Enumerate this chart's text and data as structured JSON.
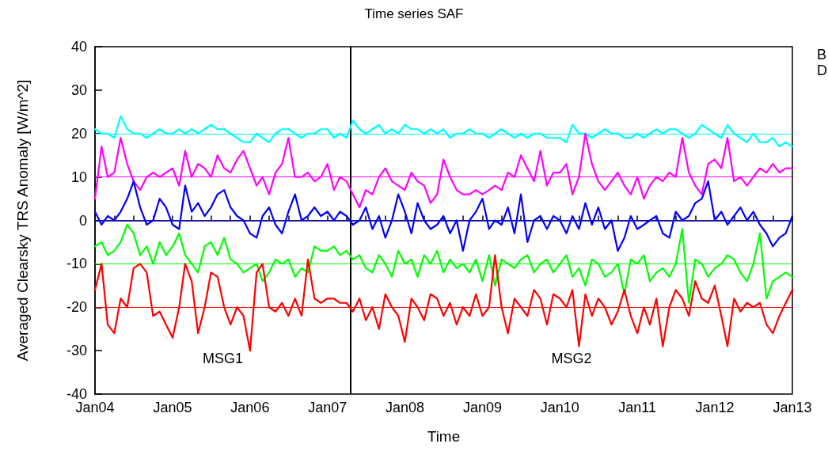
{
  "chart_data": {
    "type": "line",
    "title": "Time series SAF",
    "xlabel": "Time",
    "ylabel": "Averaged Clearsky TRS Anomaly [W/m^2]",
    "x": [
      "2004-01",
      "2004-02",
      "2004-03",
      "2004-04",
      "2004-05",
      "2004-06",
      "2004-07",
      "2004-08",
      "2004-09",
      "2004-10",
      "2004-11",
      "2004-12",
      "2005-01",
      "2005-02",
      "2005-03",
      "2005-04",
      "2005-05",
      "2005-06",
      "2005-07",
      "2005-08",
      "2005-09",
      "2005-10",
      "2005-11",
      "2005-12",
      "2006-01",
      "2006-02",
      "2006-03",
      "2006-04",
      "2006-05",
      "2006-06",
      "2006-07",
      "2006-08",
      "2006-09",
      "2006-10",
      "2006-11",
      "2006-12",
      "2007-01",
      "2007-02",
      "2007-03",
      "2007-04",
      "2007-05",
      "2007-06",
      "2007-07",
      "2007-08",
      "2007-09",
      "2007-10",
      "2007-11",
      "2007-12",
      "2008-01",
      "2008-02",
      "2008-03",
      "2008-04",
      "2008-05",
      "2008-06",
      "2008-07",
      "2008-08",
      "2008-09",
      "2008-10",
      "2008-11",
      "2008-12",
      "2009-01",
      "2009-02",
      "2009-03",
      "2009-04",
      "2009-05",
      "2009-06",
      "2009-07",
      "2009-08",
      "2009-09",
      "2009-10",
      "2009-11",
      "2009-12",
      "2010-01",
      "2010-02",
      "2010-03",
      "2010-04",
      "2010-05",
      "2010-06",
      "2010-07",
      "2010-08",
      "2010-09",
      "2010-10",
      "2010-11",
      "2010-12",
      "2011-01",
      "2011-02",
      "2011-03",
      "2011-04",
      "2011-05",
      "2011-06",
      "2011-07",
      "2011-08",
      "2011-09",
      "2011-10",
      "2011-11",
      "2011-12",
      "2012-01",
      "2012-02",
      "2012-03",
      "2012-04",
      "2012-05",
      "2012-06",
      "2012-07",
      "2012-08",
      "2012-09",
      "2012-10",
      "2012-11",
      "2012-12",
      "2013-01"
    ],
    "series": [
      {
        "color": "#00ffff",
        "values": [
          21,
          20,
          20,
          19,
          24,
          21,
          20,
          20,
          19,
          20,
          21,
          20,
          20,
          21,
          20,
          21,
          20,
          21,
          22,
          21,
          21,
          20,
          19,
          18,
          18,
          20,
          19,
          18,
          20,
          21,
          21,
          20,
          19,
          20,
          20,
          21,
          21,
          19,
          20,
          19,
          23,
          21,
          20,
          21,
          22,
          20,
          21,
          20,
          22,
          21,
          21,
          20,
          21,
          20,
          21,
          19,
          20,
          20,
          21,
          20,
          20,
          19,
          20,
          21,
          20,
          19,
          20,
          19,
          20,
          20,
          19,
          19,
          19,
          18,
          22,
          20,
          20,
          19,
          20,
          21,
          20,
          20,
          19,
          19,
          20,
          19,
          20,
          21,
          20,
          21,
          21,
          20,
          19,
          20,
          22,
          21,
          20,
          19,
          22,
          20,
          19,
          18,
          20,
          18,
          18,
          19,
          17,
          18,
          17
        ]
      },
      {
        "color": "#ff00ff",
        "values": [
          5,
          17,
          10,
          11,
          19,
          13,
          9,
          7,
          10,
          11,
          10,
          11,
          12,
          8,
          16,
          10,
          13,
          12,
          10,
          15,
          12,
          11,
          14,
          16,
          12,
          8,
          10,
          6,
          11,
          13,
          19,
          10,
          10,
          11,
          9,
          10,
          13,
          7,
          10,
          9,
          6,
          3,
          7,
          6,
          10,
          12,
          9,
          8,
          7,
          11,
          9,
          8,
          4,
          6,
          14,
          10,
          7,
          6,
          6,
          7,
          6,
          7,
          8,
          7,
          11,
          10,
          15,
          12,
          9,
          16,
          8,
          11,
          11,
          13,
          6,
          10,
          20,
          13,
          9,
          7,
          9,
          11,
          8,
          6,
          10,
          5,
          8,
          10,
          9,
          11,
          10,
          19,
          11,
          8,
          6,
          13,
          14,
          12,
          19,
          9,
          10,
          8,
          10,
          12,
          11,
          13,
          11,
          12,
          12
        ]
      },
      {
        "color": "#0000ff",
        "values": [
          2,
          -1,
          1,
          0,
          2,
          5,
          9,
          3,
          -1,
          0,
          5,
          3,
          -1,
          -2,
          8,
          2,
          4,
          1,
          3,
          6,
          7,
          3,
          1,
          0,
          -3,
          -4,
          1,
          3,
          -1,
          -3,
          2,
          6,
          0,
          1,
          3,
          1,
          2,
          0,
          2,
          1,
          -1,
          0,
          3,
          -2,
          1,
          -4,
          0,
          6,
          2,
          -3,
          4,
          0,
          -2,
          -1,
          1,
          -3,
          0,
          -7,
          0,
          2,
          5,
          -2,
          0,
          -1,
          3,
          -3,
          6,
          -5,
          0,
          1,
          -2,
          1,
          0,
          -3,
          1,
          -2,
          4,
          -1,
          3,
          -2,
          0,
          -7,
          -4,
          1,
          -2,
          -1,
          0,
          1,
          -3,
          -4,
          2,
          0,
          1,
          4,
          5,
          9,
          0,
          2,
          -1,
          1,
          3,
          0,
          2,
          -1,
          -3,
          -6,
          -4,
          -3,
          1
        ]
      },
      {
        "color": "#00ff00",
        "values": [
          -6,
          -5,
          -8,
          -7,
          -5,
          -1,
          -3,
          -8,
          -6,
          -10,
          -5,
          -8,
          -6,
          -3,
          -8,
          -10,
          -12,
          -6,
          -5,
          -8,
          -4,
          -9,
          -10,
          -12,
          -11,
          -10,
          -14,
          -12,
          -9,
          -10,
          -9,
          -13,
          -11,
          -12,
          -6,
          -7,
          -7,
          -6,
          -8,
          -7,
          -9,
          -8,
          -11,
          -12,
          -8,
          -10,
          -13,
          -7,
          -10,
          -9,
          -13,
          -8,
          -10,
          -7,
          -12,
          -9,
          -11,
          -10,
          -12,
          -9,
          -14,
          -8,
          -15,
          -9,
          -10,
          -11,
          -9,
          -8,
          -12,
          -10,
          -9,
          -12,
          -10,
          -8,
          -13,
          -11,
          -15,
          -9,
          -10,
          -13,
          -12,
          -10,
          -17,
          -9,
          -10,
          -8,
          -14,
          -12,
          -11,
          -13,
          -10,
          -2,
          -19,
          -9,
          -10,
          -13,
          -11,
          -10,
          -8,
          -9,
          -12,
          -14,
          -10,
          -3,
          -18,
          -14,
          -13,
          -12,
          -13
        ]
      },
      {
        "color": "#ff0000",
        "values": [
          -16,
          -10,
          -24,
          -26,
          -18,
          -20,
          -11,
          -10,
          -12,
          -22,
          -21,
          -24,
          -27,
          -20,
          -10,
          -14,
          -26,
          -20,
          -12,
          -13,
          -20,
          -24,
          -20,
          -22,
          -30,
          -12,
          -10,
          -20,
          -21,
          -19,
          -22,
          -18,
          -22,
          -9,
          -18,
          -19,
          -18,
          -18,
          -19,
          -19,
          -21,
          -18,
          -23,
          -20,
          -25,
          -17,
          -20,
          -22,
          -28,
          -18,
          -20,
          -23,
          -17,
          -18,
          -22,
          -19,
          -24,
          -20,
          -22,
          -17,
          -22,
          -20,
          -8,
          -20,
          -26,
          -18,
          -20,
          -22,
          -16,
          -18,
          -24,
          -17,
          -18,
          -20,
          -16,
          -29,
          -17,
          -22,
          -18,
          -20,
          -24,
          -21,
          -16,
          -22,
          -26,
          -20,
          -24,
          -18,
          -29,
          -20,
          -16,
          -18,
          -22,
          -14,
          -18,
          -19,
          -15,
          -22,
          -29,
          -18,
          -21,
          -19,
          -20,
          -19,
          -24,
          -26,
          -22,
          -19,
          -16
        ]
      }
    ],
    "xlim": [
      "2004-01",
      "2013-01"
    ],
    "xticks": [
      {
        "value": "2004-01",
        "label": "Jan04"
      },
      {
        "value": "2004-04",
        "label": null
      },
      {
        "value": "2004-07",
        "label": null
      },
      {
        "value": "2004-10",
        "label": null
      },
      {
        "value": "2005-01",
        "label": "Jan05"
      },
      {
        "value": "2005-04",
        "label": null
      },
      {
        "value": "2005-07",
        "label": null
      },
      {
        "value": "2005-10",
        "label": null
      },
      {
        "value": "2006-01",
        "label": "Jan06"
      },
      {
        "value": "2006-04",
        "label": null
      },
      {
        "value": "2006-07",
        "label": null
      },
      {
        "value": "2006-10",
        "label": null
      },
      {
        "value": "2007-01",
        "label": "Jan07"
      },
      {
        "value": "2007-04",
        "label": null
      },
      {
        "value": "2007-07",
        "label": null
      },
      {
        "value": "2007-10",
        "label": null
      },
      {
        "value": "2008-01",
        "label": "Jan08"
      },
      {
        "value": "2008-04",
        "label": null
      },
      {
        "value": "2008-07",
        "label": null
      },
      {
        "value": "2008-10",
        "label": null
      },
      {
        "value": "2009-01",
        "label": "Jan09"
      },
      {
        "value": "2009-04",
        "label": null
      },
      {
        "value": "2009-07",
        "label": null
      },
      {
        "value": "2009-10",
        "label": null
      },
      {
        "value": "2010-01",
        "label": "Jan10"
      },
      {
        "value": "2010-04",
        "label": null
      },
      {
        "value": "2010-07",
        "label": null
      },
      {
        "value": "2010-10",
        "label": null
      },
      {
        "value": "2011-01",
        "label": "Jan11"
      },
      {
        "value": "2011-04",
        "label": null
      },
      {
        "value": "2011-07",
        "label": null
      },
      {
        "value": "2011-10",
        "label": null
      },
      {
        "value": "2012-01",
        "label": "Jan12"
      },
      {
        "value": "2012-04",
        "label": null
      },
      {
        "value": "2012-07",
        "label": null
      },
      {
        "value": "2012-10",
        "label": null
      },
      {
        "value": "2013-01",
        "label": "Jan13"
      }
    ],
    "ylim": [
      -40,
      40
    ],
    "yticks": [
      -40,
      -30,
      -20,
      -10,
      0,
      10,
      20,
      30,
      40
    ],
    "ref_lines": [
      {
        "axis": "y",
        "value": 20,
        "color": "#00ffff"
      },
      {
        "axis": "y",
        "value": 10,
        "color": "#ff00ff"
      },
      {
        "axis": "y",
        "value": 0,
        "color": "#0000ff"
      },
      {
        "axis": "y",
        "value": -10,
        "color": "#00ff00"
      },
      {
        "axis": "y",
        "value": -20,
        "color": "#ff0000"
      },
      {
        "axis": "x",
        "value": "2007-04-20",
        "color": "#000000"
      }
    ],
    "annotations": [
      "MSG1",
      "MSG2",
      "B",
      "D"
    ],
    "grid": false,
    "legend": false,
    "marker": "none",
    "line_style": "solid"
  }
}
